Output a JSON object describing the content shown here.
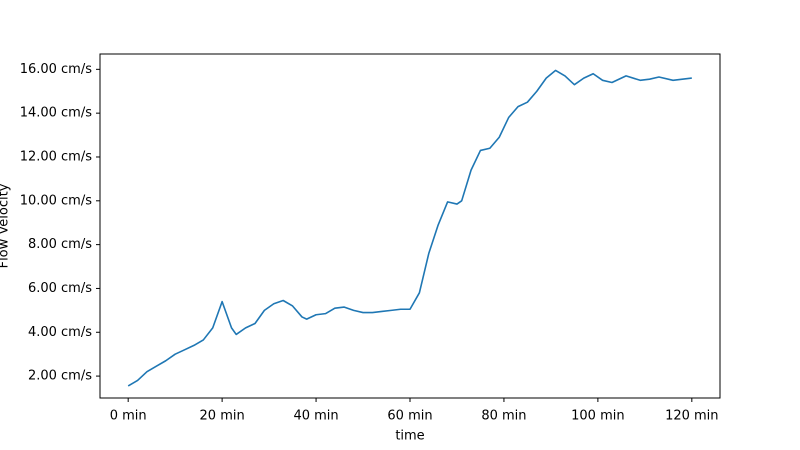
{
  "chart_data": {
    "type": "line",
    "x_label": "time",
    "y_label": "Flow Velocity",
    "x": [
      0,
      2,
      4,
      6,
      8,
      10,
      12,
      14,
      16,
      18,
      20,
      22,
      23,
      25,
      27,
      29,
      31,
      33,
      35,
      37,
      38,
      40,
      42,
      44,
      46,
      48,
      50,
      52,
      54,
      56,
      58,
      60,
      62,
      64,
      66,
      68,
      70,
      71,
      73,
      75,
      77,
      79,
      81,
      83,
      85,
      87,
      89,
      91,
      93,
      95,
      97,
      99,
      101,
      103,
      106,
      109,
      111,
      113,
      116,
      118,
      120
    ],
    "series": [
      {
        "name": "Flow Velocity",
        "color": "#1f77b4",
        "values": [
          1.55,
          1.8,
          2.2,
          2.45,
          2.7,
          3.0,
          3.2,
          3.4,
          3.65,
          4.2,
          5.4,
          4.2,
          3.9,
          4.2,
          4.4,
          5.0,
          5.3,
          5.45,
          5.2,
          4.7,
          4.6,
          4.8,
          4.85,
          5.1,
          5.15,
          5.0,
          4.9,
          4.9,
          4.95,
          5.0,
          5.05,
          5.05,
          5.8,
          7.6,
          8.9,
          9.95,
          9.85,
          10.0,
          11.4,
          12.3,
          12.4,
          12.9,
          13.8,
          14.3,
          14.5,
          15.0,
          15.6,
          15.95,
          15.7,
          15.3,
          15.6,
          15.8,
          15.5,
          15.4,
          15.7,
          15.5,
          15.55,
          15.65,
          15.5,
          15.55,
          15.6
        ]
      }
    ],
    "xlim": [
      -6,
      126
    ],
    "xticks": [
      {
        "value": 0,
        "label": "0 min"
      },
      {
        "value": 20,
        "label": "20 min"
      },
      {
        "value": 40,
        "label": "40 min"
      },
      {
        "value": 60,
        "label": "60 min"
      },
      {
        "value": 80,
        "label": "80 min"
      },
      {
        "value": 100,
        "label": "100 min"
      },
      {
        "value": 120,
        "label": "120 min"
      }
    ],
    "ylim": [
      1.0,
      16.7
    ],
    "yticks": [
      {
        "value": 2,
        "label": "2.00 cm/s"
      },
      {
        "value": 4,
        "label": "4.00 cm/s"
      },
      {
        "value": 6,
        "label": "6.00 cm/s"
      },
      {
        "value": 8,
        "label": "8.00 cm/s"
      },
      {
        "value": 10,
        "label": "10.00 cm/s"
      },
      {
        "value": 12,
        "label": "12.00 cm/s"
      },
      {
        "value": 14,
        "label": "14.00 cm/s"
      },
      {
        "value": 16,
        "label": "16.00 cm/s"
      }
    ],
    "grid": false
  }
}
